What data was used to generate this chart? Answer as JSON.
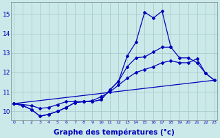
{
  "background_color": "#cce9e9",
  "grid_color": "#aacccc",
  "line_color": "#0000bb",
  "xlabel": "Graphe des températures (°c)",
  "xlabel_fontsize": 7.5,
  "ytick_labels": [
    "10",
    "11",
    "12",
    "13",
    "14",
    "15"
  ],
  "ytick_vals": [
    10,
    11,
    12,
    13,
    14,
    15
  ],
  "xtick_vals": [
    0,
    1,
    2,
    3,
    4,
    5,
    6,
    7,
    8,
    9,
    10,
    11,
    12,
    13,
    14,
    15,
    16,
    17,
    18,
    19,
    20,
    21,
    22,
    23
  ],
  "xlim": [
    -0.3,
    23.3
  ],
  "ylim": [
    9.55,
    15.6
  ],
  "series1_x": [
    0,
    1,
    2,
    3,
    4,
    5,
    6,
    7,
    8,
    9,
    10,
    11,
    12,
    13,
    14,
    15,
    16,
    17,
    18,
    19,
    20,
    21,
    22,
    23
  ],
  "series1_y": [
    10.4,
    10.3,
    10.1,
    9.75,
    9.85,
    10.0,
    10.2,
    10.45,
    10.5,
    10.5,
    10.6,
    11.1,
    11.55,
    12.85,
    13.55,
    15.1,
    14.8,
    15.15,
    13.3,
    null,
    null,
    null,
    null,
    null
  ],
  "series2_x": [
    0,
    1,
    2,
    3,
    4,
    5,
    6,
    7,
    8,
    9,
    10,
    11,
    12,
    13,
    14,
    15,
    16,
    17,
    18,
    19,
    20,
    21,
    22,
    23
  ],
  "series2_y": [
    10.4,
    10.3,
    10.1,
    9.75,
    9.85,
    10.0,
    10.2,
    10.45,
    10.5,
    10.5,
    10.6,
    11.1,
    11.55,
    12.3,
    12.75,
    12.8,
    13.05,
    13.3,
    13.3,
    12.75,
    12.75,
    12.5,
    11.95,
    11.6
  ],
  "series3_x": [
    0,
    2,
    3,
    4,
    5,
    6,
    7,
    8,
    9,
    10,
    11,
    12,
    13,
    14,
    15,
    16,
    17,
    18,
    19,
    20,
    21,
    22,
    23
  ],
  "series3_y": [
    10.4,
    10.3,
    10.15,
    10.2,
    10.35,
    10.5,
    10.5,
    10.5,
    10.55,
    10.75,
    11.0,
    11.35,
    11.7,
    12.0,
    12.15,
    12.3,
    12.5,
    12.6,
    12.5,
    12.5,
    12.7,
    11.95,
    11.6
  ],
  "series4_x": [
    0,
    23
  ],
  "series4_y": [
    10.4,
    11.6
  ]
}
